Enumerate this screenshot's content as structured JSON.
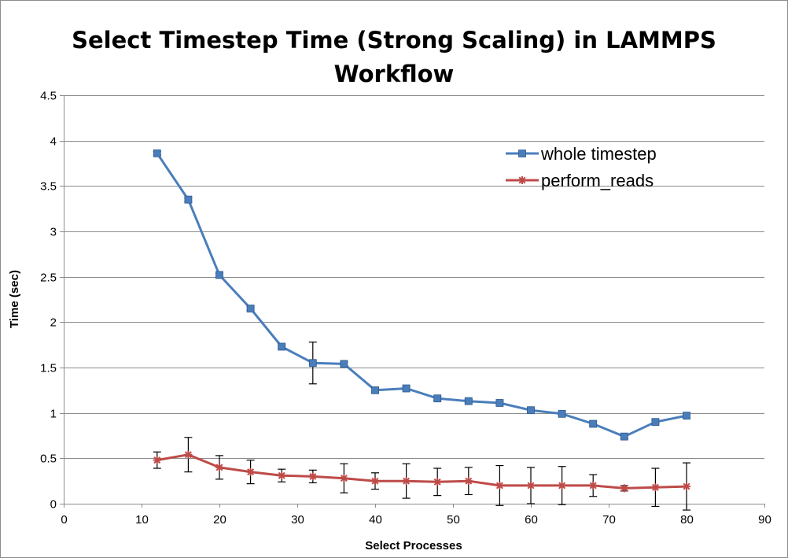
{
  "chart_data": {
    "type": "line",
    "title_lines": [
      "Select Timestep Time (Strong Scaling) in LAMMPS",
      "Workflow"
    ],
    "xlabel": "Select Processes",
    "ylabel": "Time (sec)",
    "xlim": [
      0,
      90
    ],
    "ylim": [
      0,
      4.5
    ],
    "xticks": [
      0,
      10,
      20,
      30,
      40,
      50,
      60,
      70,
      80,
      90
    ],
    "yticks": [
      0,
      0.5,
      1,
      1.5,
      2,
      2.5,
      3,
      3.5,
      4,
      4.5
    ],
    "grid": "horizontal",
    "legend_position": "top-right",
    "x": [
      12,
      16,
      20,
      24,
      28,
      32,
      36,
      40,
      44,
      48,
      52,
      56,
      60,
      64,
      68,
      72,
      76,
      80
    ],
    "series": [
      {
        "name": "whole timestep",
        "color": "#4a7ebb",
        "marker": "square",
        "values": [
          3.86,
          3.35,
          2.52,
          2.15,
          1.73,
          1.55,
          1.54,
          1.25,
          1.27,
          1.16,
          1.13,
          1.11,
          1.03,
          0.99,
          0.88,
          0.74,
          0.9,
          0.97
        ],
        "error": [
          0.02,
          0.02,
          0.02,
          0.02,
          0.02,
          0.23,
          0.02,
          0.02,
          0.02,
          0.02,
          0.02,
          0.02,
          0.02,
          0.02,
          0.02,
          0.02,
          0.02,
          0.02
        ]
      },
      {
        "name": "perform_reads",
        "color": "#be4b48",
        "marker": "star",
        "values": [
          0.48,
          0.54,
          0.4,
          0.35,
          0.31,
          0.3,
          0.28,
          0.25,
          0.25,
          0.24,
          0.25,
          0.2,
          0.2,
          0.2,
          0.2,
          0.17,
          0.18,
          0.19
        ],
        "error": [
          0.09,
          0.19,
          0.13,
          0.13,
          0.07,
          0.07,
          0.16,
          0.09,
          0.19,
          0.15,
          0.15,
          0.22,
          0.2,
          0.21,
          0.12,
          0.03,
          0.21,
          0.26
        ]
      }
    ]
  }
}
